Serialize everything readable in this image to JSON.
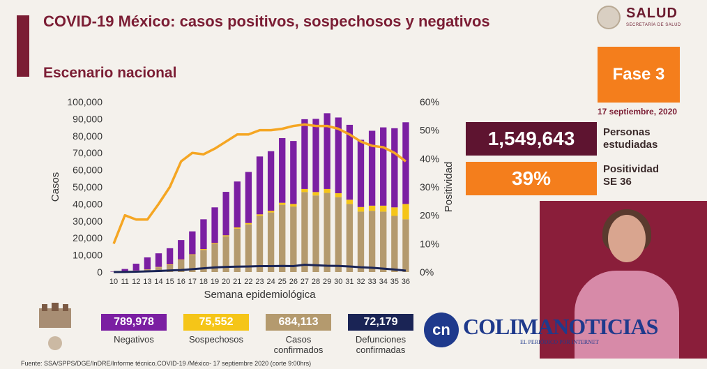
{
  "header": {
    "title": "COVID-19 México: casos positivos, sospechosos y negativos",
    "subtitle": "Escenario nacional"
  },
  "logo": {
    "text": "SALUD",
    "sub": "SECRETARÍA DE SALUD"
  },
  "fase": {
    "label": "Fase 3",
    "date": "17 septiembre, 2020"
  },
  "stats": [
    {
      "value": "1,549,643",
      "label_line1": "Personas",
      "label_line2": "estudiadas",
      "color": "#5e1430"
    },
    {
      "value": "39%",
      "label_line1": "Positividad",
      "label_line2": "SE 36",
      "color": "#f47e1c"
    }
  ],
  "legend": [
    {
      "value": "789,978",
      "label_line1": "Negativos",
      "label_line2": "",
      "color": "#7b1fa2"
    },
    {
      "value": "75,552",
      "label_line1": "Sospechosos",
      "label_line2": "",
      "color": "#f5c518"
    },
    {
      "value": "684,113",
      "label_line1": "Casos",
      "label_line2": "confirmados",
      "color": "#b49a6e"
    },
    {
      "value": "72,179",
      "label_line1": "Defunciones",
      "label_line2": "confirmadas",
      "color": "#1a2455"
    }
  ],
  "footer": "Fuente: SSA/SPPS/DGE/InDRE/Informe técnico.COVID-19 /México- 17 septiembre 2020 (corte 9:00hrs)",
  "branding": {
    "circle": "cn",
    "name": "COLIMANOTICIAS",
    "tagline": "EL PERIÓDICO POR INTERNET"
  },
  "chart_data": {
    "type": "bar",
    "stacked": true,
    "xlabel": "Semana epidemiológica",
    "ylabel": "Casos",
    "y2label": "Positividad",
    "ylim": [
      0,
      100000
    ],
    "y2lim": [
      0,
      60
    ],
    "yticks": [
      "0",
      "10,000",
      "20,000",
      "30,000",
      "40,000",
      "50,000",
      "60,000",
      "70,000",
      "80,000",
      "90,000",
      "100,000"
    ],
    "y2ticks": [
      "0%",
      "10%",
      "20%",
      "30%",
      "40%",
      "50%",
      "60%"
    ],
    "categories": [
      "10",
      "11",
      "12",
      "13",
      "14",
      "15",
      "16",
      "17",
      "18",
      "19",
      "20",
      "21",
      "22",
      "23",
      "24",
      "25",
      "26",
      "27",
      "28",
      "29",
      "30",
      "31",
      "32",
      "33",
      "34",
      "35",
      "36"
    ],
    "series": [
      {
        "name": "Casos confirmados",
        "kind": "bar",
        "color": "#b49a6e",
        "values": [
          100,
          300,
          800,
          1500,
          2800,
          4200,
          7000,
          10000,
          13000,
          16500,
          21000,
          25500,
          28000,
          33000,
          35000,
          39500,
          38500,
          47000,
          45000,
          46500,
          44000,
          40000,
          35500,
          36000,
          35500,
          33000,
          31000
        ]
      },
      {
        "name": "Sospechosos",
        "kind": "bar",
        "color": "#f5c518",
        "values": [
          0,
          0,
          100,
          100,
          200,
          300,
          300,
          400,
          500,
          500,
          600,
          700,
          800,
          900,
          1000,
          1200,
          1500,
          1800,
          2000,
          2300,
          2300,
          2500,
          2700,
          3000,
          3500,
          5000,
          9000
        ]
      },
      {
        "name": "Negativos",
        "kind": "bar",
        "color": "#7b1fa2",
        "values": [
          200,
          1500,
          4000,
          7000,
          8000,
          9500,
          11500,
          13500,
          17500,
          21000,
          25500,
          27000,
          30000,
          34000,
          35000,
          38000,
          37000,
          41000,
          43000,
          44500,
          44500,
          44000,
          39500,
          44000,
          46000,
          46500,
          48000
        ]
      },
      {
        "name": "Defunciones confirmadas",
        "kind": "line",
        "axis": "left",
        "color": "#1a2455",
        "values": [
          0,
          50,
          200,
          400,
          600,
          900,
          1200,
          1700,
          2200,
          2700,
          3000,
          3200,
          3300,
          3500,
          3500,
          3600,
          3500,
          4300,
          4000,
          3700,
          3600,
          3300,
          2800,
          2500,
          2000,
          1500,
          800
        ]
      },
      {
        "name": "Positividad",
        "kind": "line",
        "axis": "right",
        "color": "#f5a623",
        "values": [
          10,
          20,
          18.5,
          18.5,
          24,
          30,
          39,
          42,
          41.5,
          43.5,
          46,
          48.5,
          48.5,
          50,
          50,
          50.5,
          51.5,
          52,
          51.5,
          51.5,
          50.5,
          48.5,
          46,
          44.5,
          44,
          42,
          39
        ]
      }
    ]
  }
}
